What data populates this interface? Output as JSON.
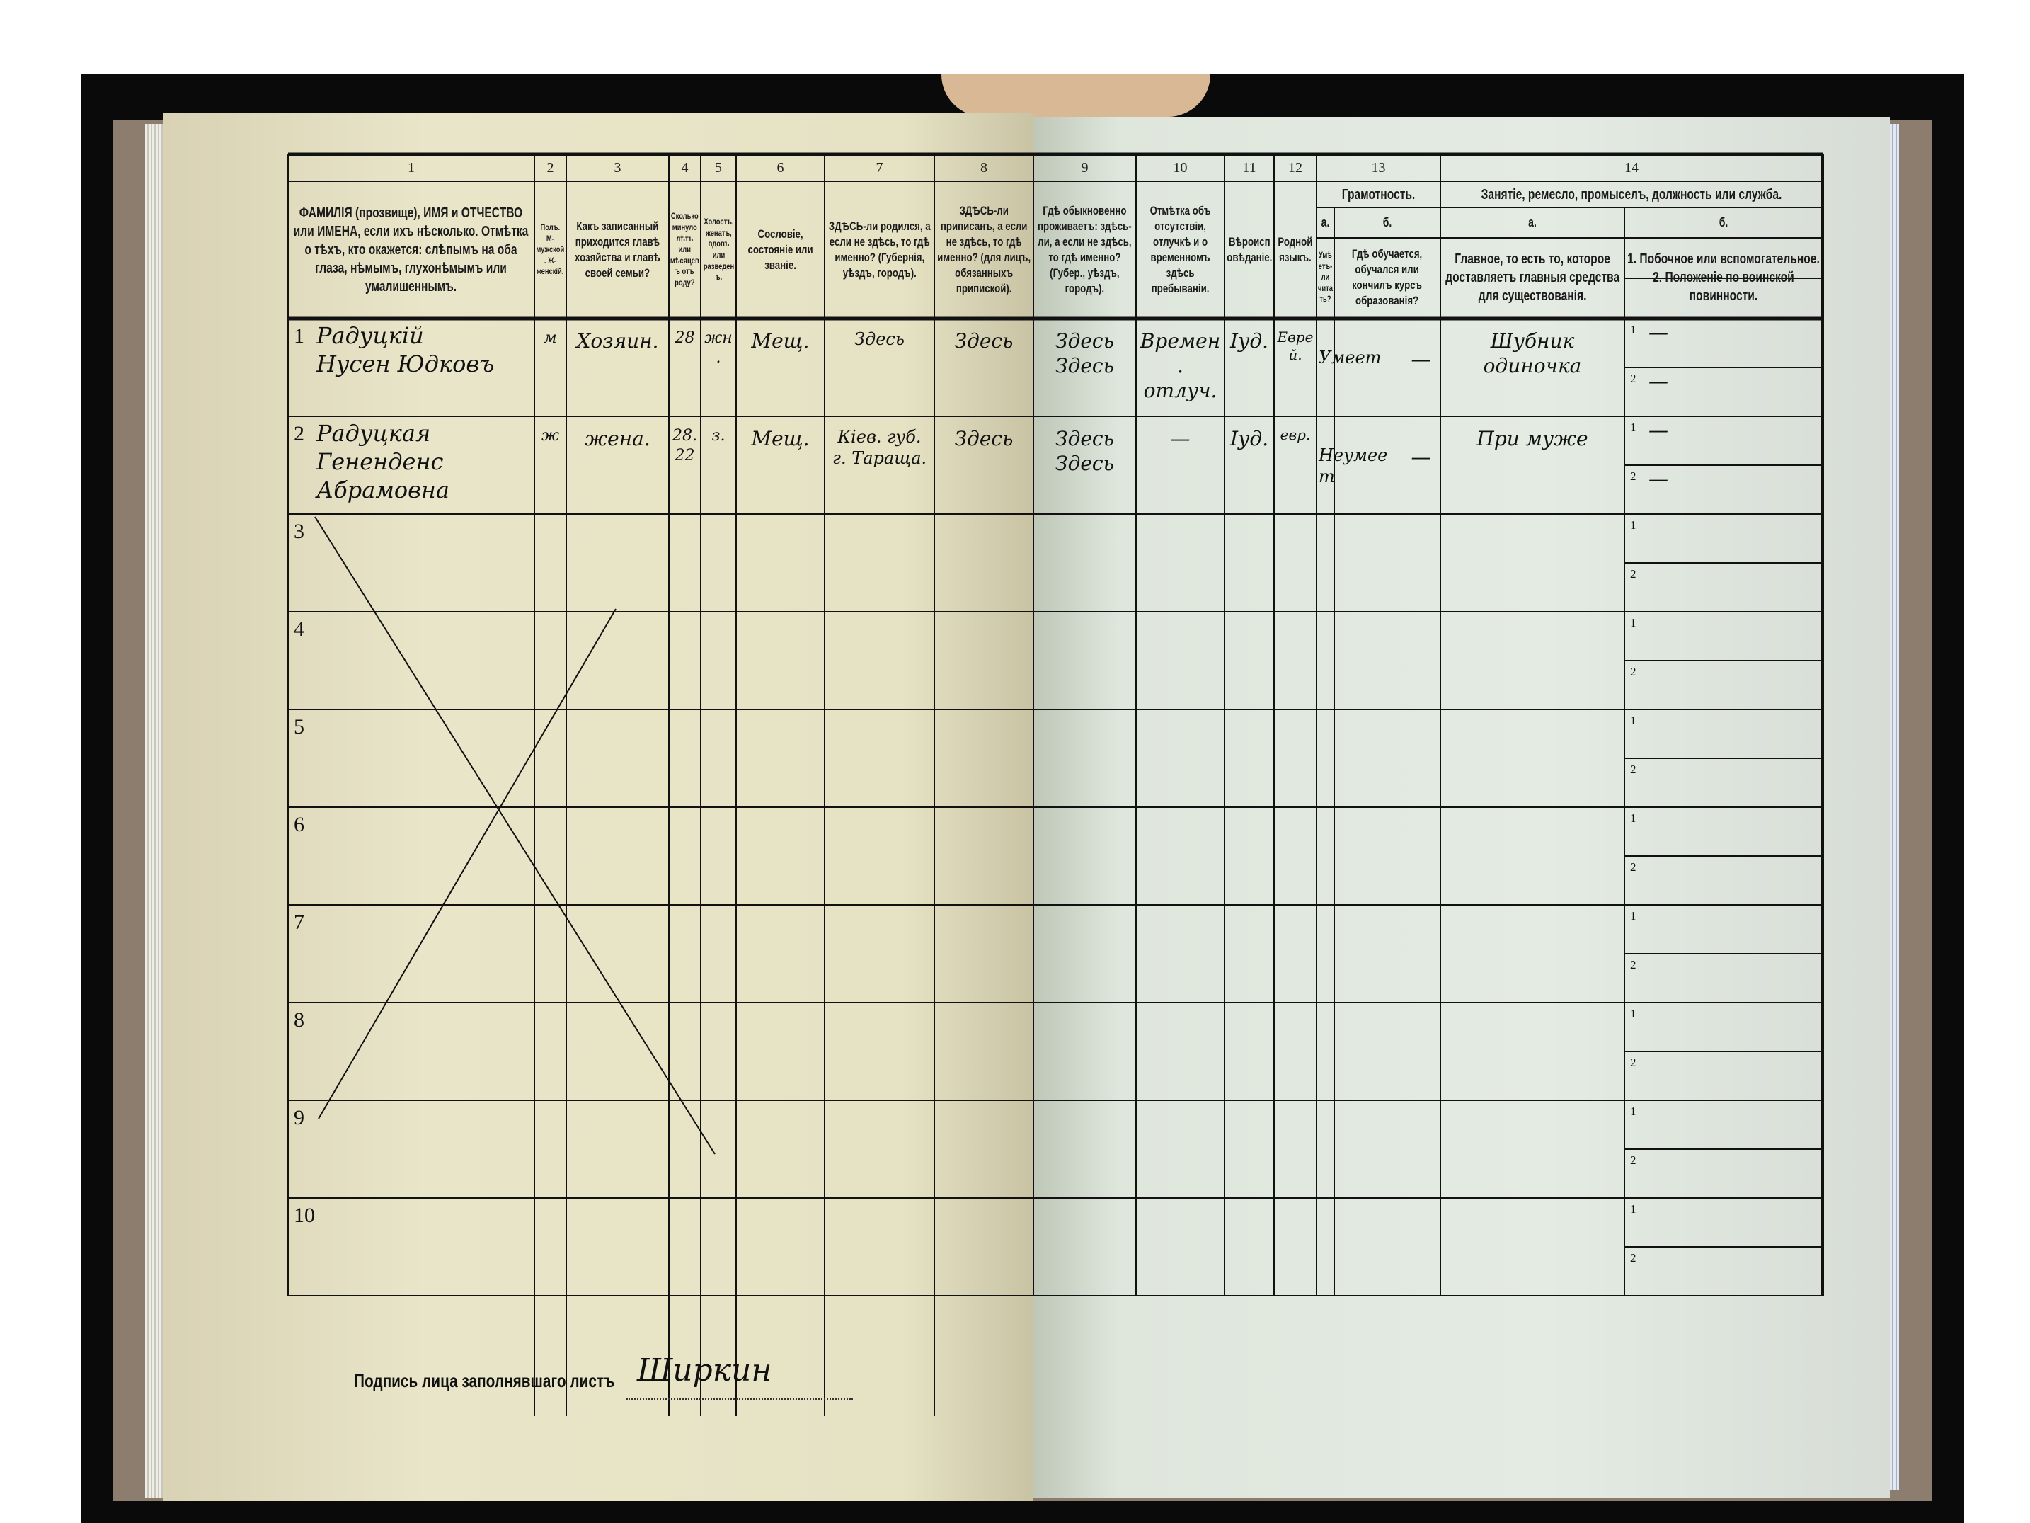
{
  "form": {
    "columns": [
      {
        "num": "1",
        "text": "ФАМИЛІЯ (прозвище), ИМЯ и ОТЧЕСТВО или ИМЕНА, если ихъ нѣсколько. Отмѣтка о тѣхъ, кто окажется: слѣпымъ на оба глаза, нѣмымъ, глухонѣмымъ или умалишеннымъ."
      },
      {
        "num": "2",
        "text": "Полъ. М-мужской. Ж-женскій."
      },
      {
        "num": "3",
        "text": "Какъ записанный приходится главѣ хозяйства и главѣ своей семьи?"
      },
      {
        "num": "4",
        "text": "Сколько минуло лѣтъ или мѣсяцевъ отъ роду?"
      },
      {
        "num": "5",
        "text": "Холостъ, женатъ, вдовъ или разведенъ."
      },
      {
        "num": "6",
        "text": "Сословіе, состояніе или званіе."
      },
      {
        "num": "7",
        "text": "ЗДѢСЬ-ли родился, а если не здѣсь, то гдѣ именно? (Губернія, уѣздъ, городъ)."
      },
      {
        "num": "8",
        "text": "ЗДѢСЬ-ли приписанъ, а если не здѣсь, то гдѣ именно? (для лицъ, обязанныхъ припиской)."
      },
      {
        "num": "9",
        "text": "Гдѣ обыкновенно проживаетъ: здѣсь-ли, а если не здѣсь, то гдѣ именно? (Губер., уѣздъ, городъ)."
      },
      {
        "num": "10",
        "text": "Отмѣтка объ отсутствіи, отлучкѣ и о временномъ здѣсь пребываніи."
      },
      {
        "num": "11",
        "text": "Вѣроисповѣданіе."
      },
      {
        "num": "12",
        "text": "Родной языкъ."
      },
      {
        "num": "13a",
        "text": "Умѣетъ-ли читать?"
      },
      {
        "num": "13b",
        "text": "Гдѣ обучается, обучался или кончилъ курсъ образованія?"
      },
      {
        "num": "14a",
        "text": "Главное, то есть то, которое доставляетъ главныя средства для существованія."
      },
      {
        "num": "14b",
        "text": "1. Побочное или вспомогательное. 2. Положеніе по воинской повинности."
      }
    ],
    "group_13": {
      "num": "13",
      "title": "Грамотность.",
      "sub_a": "а.",
      "sub_b": "б."
    },
    "group_14": {
      "num": "14",
      "title": "Занятіе, ремесло, промыселъ, должность или служба.",
      "sub_a": "а.",
      "sub_b": "б."
    },
    "row_numbers": [
      "1",
      "2",
      "3",
      "4",
      "5",
      "6",
      "7",
      "8",
      "9",
      "10"
    ],
    "sub_labels": [
      "1",
      "2"
    ],
    "entries": [
      {
        "name": "Радуцкiй\nНусен Юдковъ",
        "sex": "м",
        "relation": "Хозяин.",
        "age": "28",
        "marital": "жн.",
        "estate": "Мещ.",
        "birthplace": "Здесь",
        "registered": "Здесь",
        "residence": "Здесь\nЗдесь",
        "absence": "Времен.\nотлуч.",
        "religion": "Іуд.",
        "language": "Еврей.",
        "literate": "Умеет",
        "education": "—",
        "occupation": "Шубник\nодиночка",
        "secondary_1": "—",
        "secondary_2": "—"
      },
      {
        "name": "Радуцкая\nГененденс Абрамовна",
        "sex": "ж",
        "relation": "жена.",
        "age": "28.\n22",
        "marital": "з.",
        "estate": "Мещ.",
        "birthplace": "Кiев. губ.\nг. Таращa.",
        "registered": "Здесь",
        "residence": "Здесь\nЗдесь",
        "absence": "—",
        "religion": "Іуд.",
        "language": "евр.",
        "literate": "Неумеет",
        "education": "—",
        "occupation": "При муже",
        "secondary_1": "—",
        "secondary_2": "—"
      }
    ],
    "signature_label": "Подпись лица заполнявшаго листъ",
    "signature": "Ширкин"
  },
  "colors": {
    "left_page": "#e6e2c4",
    "right_page": "#e2e9e1",
    "ink": "#111111",
    "border": "#0a0a0a"
  }
}
